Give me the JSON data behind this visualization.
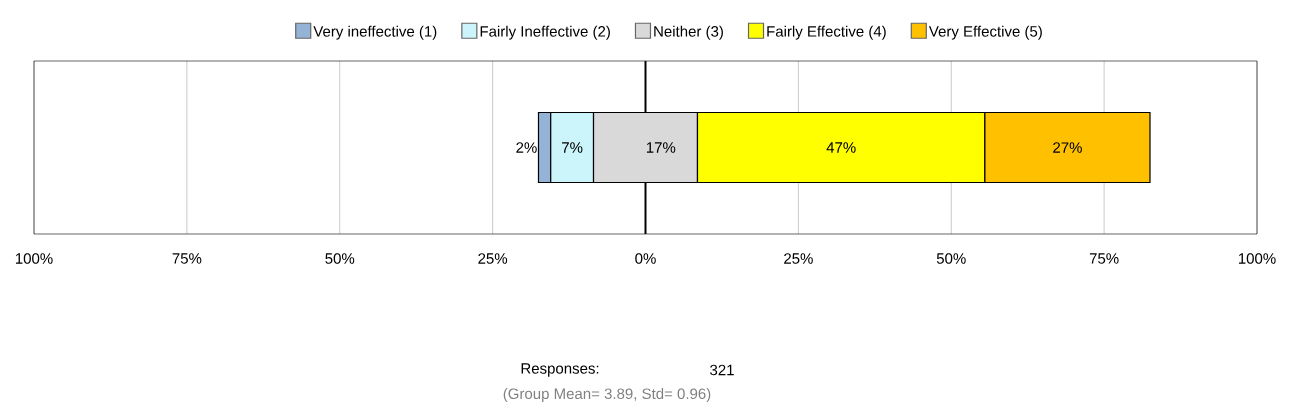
{
  "chart_data": {
    "type": "bar",
    "orientation": "horizontal",
    "categories": [
      null
    ],
    "series": [
      {
        "name": "Very ineffective (1)",
        "color": "#95b3d7",
        "base": [
          -17.5
        ],
        "values": [
          2
        ],
        "value_labels": [
          "2%"
        ]
      },
      {
        "name": "Fairly Ineffective (2)",
        "color": "#ccf5fb",
        "base": [
          -15.5
        ],
        "values": [
          7
        ],
        "value_labels": [
          "7%"
        ]
      },
      {
        "name": "Neither (3)",
        "color": "#d9d9d9",
        "base": [
          -8.5
        ],
        "values": [
          17
        ],
        "value_labels": [
          "17%"
        ]
      },
      {
        "name": "Fairly Effective (4)",
        "color": "#ffff00",
        "base": [
          8.5
        ],
        "values": [
          47
        ],
        "value_labels": [
          "47%"
        ]
      },
      {
        "name": "Very Effective (5)",
        "color": "#ffc000",
        "base": [
          55.5
        ],
        "values": [
          27
        ],
        "value_labels": [
          "27%"
        ]
      }
    ],
    "xlim": [
      -100,
      100
    ],
    "xticks": [
      {
        "value": -100,
        "label": "100%"
      },
      {
        "value": -75,
        "label": "75%"
      },
      {
        "value": -50,
        "label": "50%"
      },
      {
        "value": -25,
        "label": "25%"
      },
      {
        "value": 0,
        "label": "0%"
      },
      {
        "value": 25,
        "label": "25%"
      },
      {
        "value": 50,
        "label": "50%"
      },
      {
        "value": 75,
        "label": "75%"
      },
      {
        "value": 100,
        "label": "100%"
      }
    ],
    "grid": "x",
    "legend": "top",
    "ref_lines": [
      {
        "axis": "x",
        "value": 0,
        "color": "#000000"
      }
    ],
    "annotations": [
      "Responses:",
      "321",
      "(Group Mean= 3.89, Std= 0.96)"
    ]
  }
}
